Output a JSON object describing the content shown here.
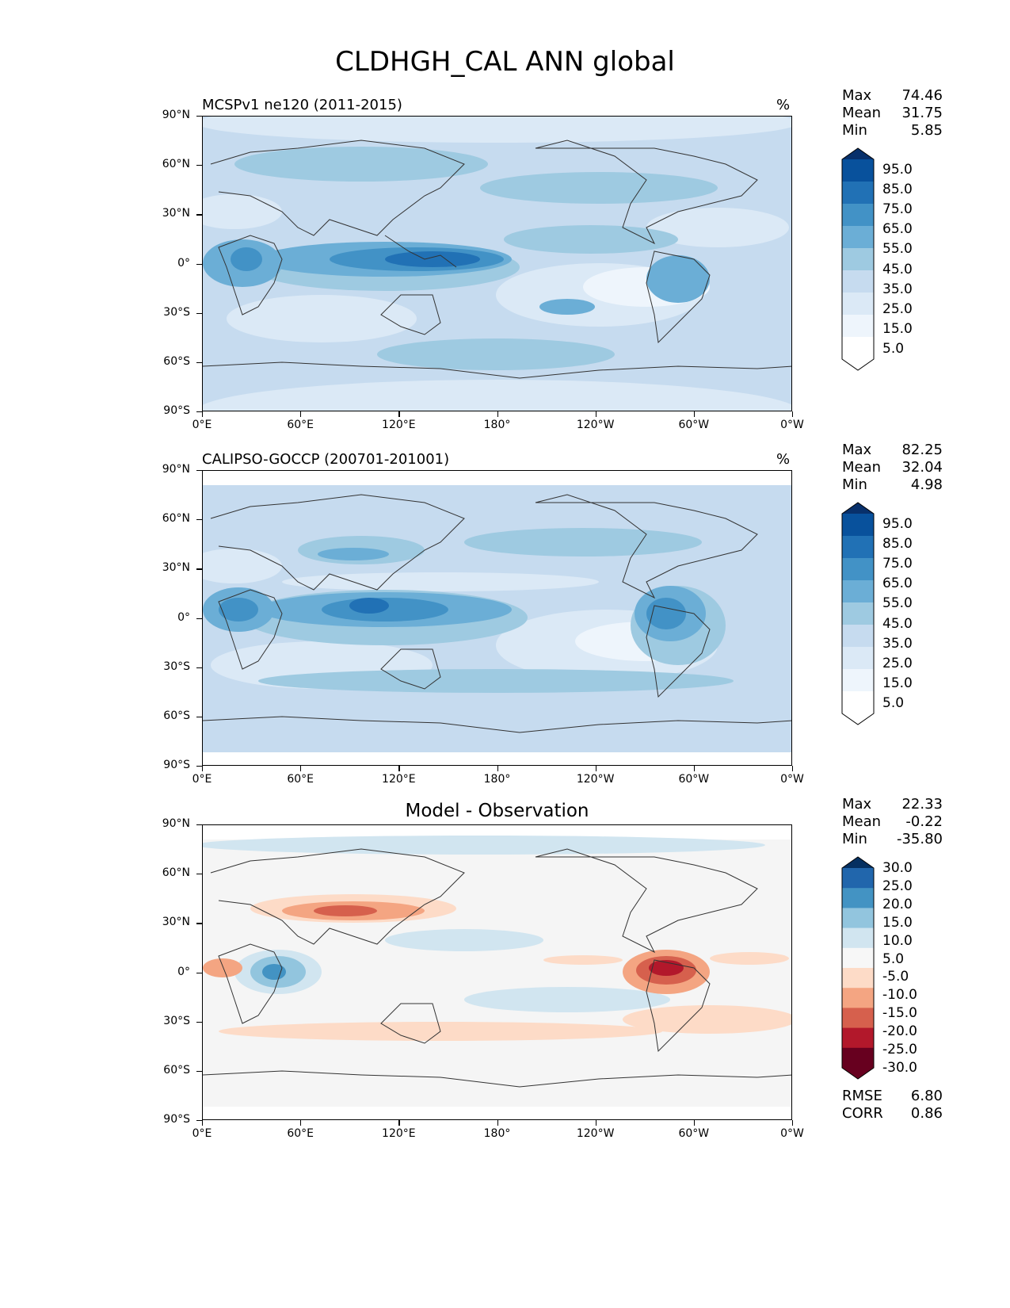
{
  "title": "CLDHGH_CAL ANN global",
  "lat_labels": [
    "90°N",
    "60°N",
    "30°N",
    "0°",
    "30°S",
    "60°S",
    "90°S"
  ],
  "lon_labels": [
    "0°E",
    "60°E",
    "120°E",
    "180°",
    "120°W",
    "60°W",
    "0°W"
  ],
  "panels": [
    {
      "title": "MCSPv1 ne120 (2011-2015)",
      "units": "%",
      "stats": {
        "max_label": "Max",
        "max": "74.46",
        "mean_label": "Mean",
        "mean": "31.75",
        "min_label": "Min",
        "min": "5.85"
      },
      "colorbar": {
        "labels": [
          "95.0",
          "85.0",
          "75.0",
          "65.0",
          "55.0",
          "45.0",
          "35.0",
          "25.0",
          "15.0",
          "5.0"
        ],
        "colors": [
          "#08306b",
          "#08519c",
          "#2171b5",
          "#4292c6",
          "#6baed6",
          "#9ecae1",
          "#c6dbef",
          "#dbe9f6",
          "#eef5fc",
          "#ffffff"
        ]
      }
    },
    {
      "title": "CALIPSO-GOCCP (200701-201001)",
      "units": "%",
      "stats": {
        "max_label": "Max",
        "max": "82.25",
        "mean_label": "Mean",
        "mean": "32.04",
        "min_label": "Min",
        "min": "4.98"
      },
      "colorbar": {
        "labels": [
          "95.0",
          "85.0",
          "75.0",
          "65.0",
          "55.0",
          "45.0",
          "35.0",
          "25.0",
          "15.0",
          "5.0"
        ],
        "colors": [
          "#08306b",
          "#08519c",
          "#2171b5",
          "#4292c6",
          "#6baed6",
          "#9ecae1",
          "#c6dbef",
          "#dbe9f6",
          "#eef5fc",
          "#ffffff"
        ]
      }
    },
    {
      "title": "Model - Observation",
      "units": "",
      "stats": {
        "max_label": "Max",
        "max": "22.33",
        "mean_label": "Mean",
        "mean": "-0.22",
        "min_label": "Min",
        "min": "-35.80"
      },
      "colorbar": {
        "labels": [
          "30.0",
          "25.0",
          "20.0",
          "15.0",
          "10.0",
          "5.0",
          "-5.0",
          "-10.0",
          "-15.0",
          "-20.0",
          "-25.0",
          "-30.0"
        ],
        "colors": [
          "#053061",
          "#2166ac",
          "#4393c3",
          "#92c5de",
          "#d1e5f0",
          "#f7f7f7",
          "#fddbc7",
          "#f4a582",
          "#d6604d",
          "#b2182b",
          "#67001f"
        ]
      },
      "rmse_label": "RMSE",
      "rmse": "6.80",
      "corr_label": "CORR",
      "corr": "0.86"
    }
  ],
  "colors": {
    "ocean_blue_low": "#dbe9f6",
    "diff_neutral": "#f5f5f5",
    "coastline": "#333333"
  }
}
